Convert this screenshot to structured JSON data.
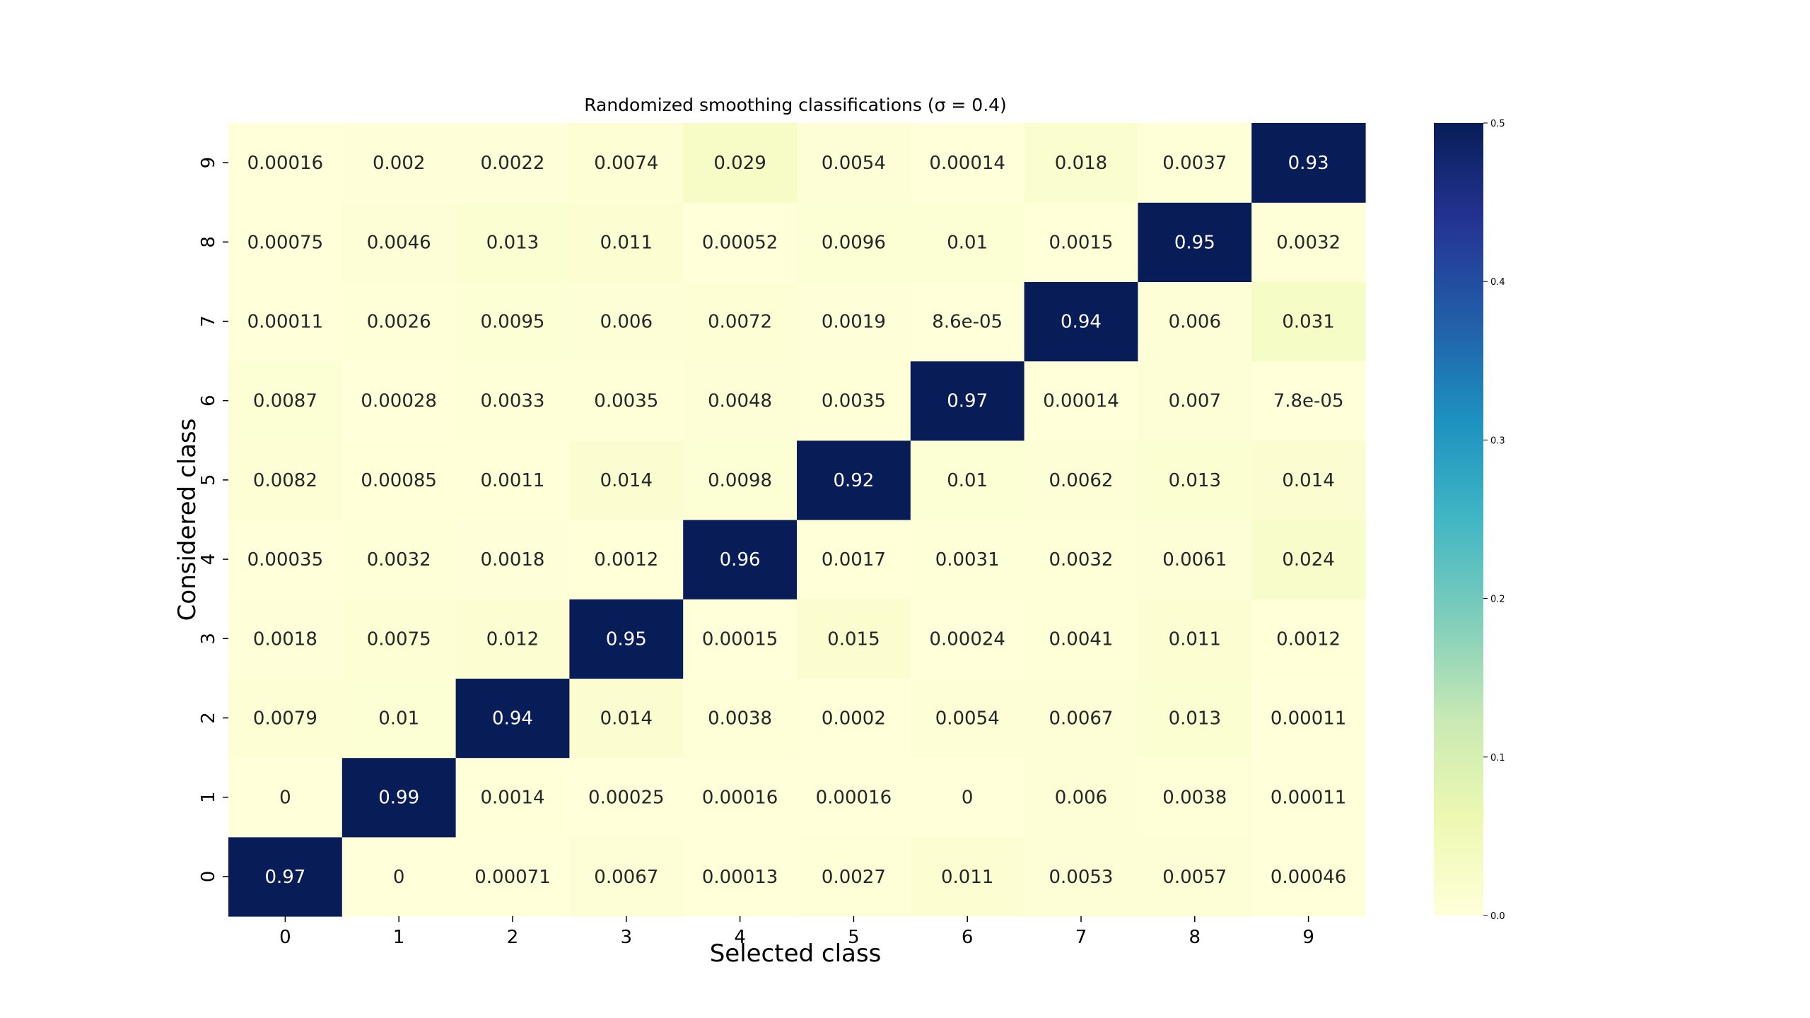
{
  "chart_data": {
    "type": "heatmap",
    "title": "Randomized smoothing classifications (σ = 0.4)",
    "xlabel": "Selected class",
    "ylabel": "Considered class",
    "x_categories": [
      "0",
      "1",
      "2",
      "3",
      "4",
      "5",
      "6",
      "7",
      "8",
      "9"
    ],
    "y_categories": [
      "0",
      "1",
      "2",
      "3",
      "4",
      "5",
      "6",
      "7",
      "8",
      "9"
    ],
    "y_order": "bottom-to-top",
    "colormap": "YlGnBu",
    "vmin": 0.0,
    "vmax": 0.5,
    "colorbar_ticks": [
      "0.0",
      "0.1",
      "0.2",
      "0.3",
      "0.4",
      "0.5"
    ],
    "values": [
      [
        0.97,
        0,
        0.00071,
        0.0067,
        0.00013,
        0.0027,
        0.011,
        0.0053,
        0.0057,
        0.00046
      ],
      [
        0,
        0.99,
        0.0014,
        0.00025,
        0.00016,
        0.00016,
        0,
        0.006,
        0.0038,
        0.00011
      ],
      [
        0.0079,
        0.01,
        0.94,
        0.014,
        0.0038,
        0.0002,
        0.0054,
        0.0067,
        0.013,
        0.00011
      ],
      [
        0.0018,
        0.0075,
        0.012,
        0.95,
        0.00015,
        0.015,
        0.00024,
        0.0041,
        0.011,
        0.0012
      ],
      [
        0.00035,
        0.0032,
        0.0018,
        0.0012,
        0.96,
        0.0017,
        0.0031,
        0.0032,
        0.0061,
        0.024
      ],
      [
        0.0082,
        0.00085,
        0.0011,
        0.014,
        0.0098,
        0.92,
        0.01,
        0.0062,
        0.013,
        0.014
      ],
      [
        0.0087,
        0.00028,
        0.0033,
        0.0035,
        0.0048,
        0.0035,
        0.97,
        0.00014,
        0.007,
        7.8e-05
      ],
      [
        0.00011,
        0.0026,
        0.0095,
        0.006,
        0.0072,
        0.0019,
        8.6e-05,
        0.94,
        0.006,
        0.031
      ],
      [
        0.00075,
        0.0046,
        0.013,
        0.011,
        0.00052,
        0.0096,
        0.01,
        0.0015,
        0.95,
        0.0032
      ],
      [
        0.00016,
        0.002,
        0.0022,
        0.0074,
        0.029,
        0.0054,
        0.00014,
        0.018,
        0.0037,
        0.93
      ]
    ],
    "labels": [
      [
        "0.97",
        "0",
        "0.00071",
        "0.0067",
        "0.00013",
        "0.0027",
        "0.011",
        "0.0053",
        "0.0057",
        "0.00046"
      ],
      [
        "0",
        "0.99",
        "0.0014",
        "0.00025",
        "0.00016",
        "0.00016",
        "0",
        "0.006",
        "0.0038",
        "0.00011"
      ],
      [
        "0.0079",
        "0.01",
        "0.94",
        "0.014",
        "0.0038",
        "0.0002",
        "0.0054",
        "0.0067",
        "0.013",
        "0.00011"
      ],
      [
        "0.0018",
        "0.0075",
        "0.012",
        "0.95",
        "0.00015",
        "0.015",
        "0.00024",
        "0.0041",
        "0.011",
        "0.0012"
      ],
      [
        "0.00035",
        "0.0032",
        "0.0018",
        "0.0012",
        "0.96",
        "0.0017",
        "0.0031",
        "0.0032",
        "0.0061",
        "0.024"
      ],
      [
        "0.0082",
        "0.00085",
        "0.0011",
        "0.014",
        "0.0098",
        "0.92",
        "0.01",
        "0.0062",
        "0.013",
        "0.014"
      ],
      [
        "0.0087",
        "0.00028",
        "0.0033",
        "0.0035",
        "0.0048",
        "0.0035",
        "0.97",
        "0.00014",
        "0.007",
        "7.8e-05"
      ],
      [
        "0.00011",
        "0.0026",
        "0.0095",
        "0.006",
        "0.0072",
        "0.0019",
        "8.6e-05",
        "0.94",
        "0.006",
        "0.031"
      ],
      [
        "0.00075",
        "0.0046",
        "0.013",
        "0.011",
        "0.00052",
        "0.0096",
        "0.01",
        "0.0015",
        "0.95",
        "0.0032"
      ],
      [
        "0.00016",
        "0.002",
        "0.0022",
        "0.0074",
        "0.029",
        "0.0054",
        "0.00014",
        "0.018",
        "0.0037",
        "0.93"
      ]
    ]
  }
}
